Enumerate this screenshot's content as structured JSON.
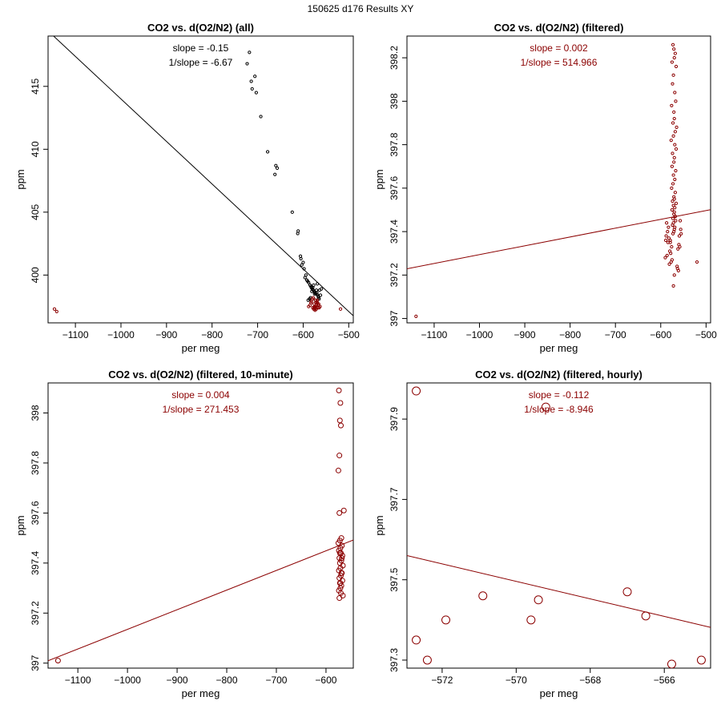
{
  "page_title": "150625   d176   Results XY",
  "colors": {
    "dark_red": "#8b0000",
    "black": "#000000"
  },
  "chart_data": [
    {
      "type": "scatter",
      "id": "all",
      "title": "CO2 vs. d(O2/N2) (all)",
      "xlabel": "per meg",
      "ylabel": "ppm",
      "xlim": [
        -1160,
        -490
      ],
      "ylim": [
        396.2,
        419.0
      ],
      "xticks": [
        -1100,
        -1000,
        -900,
        -800,
        -700,
        -600,
        -500
      ],
      "yticks": [
        400,
        405,
        410,
        415
      ],
      "annotations": [
        "slope = -0.15",
        "1/slope = -6.67"
      ],
      "annotation_color": "#000000",
      "fit_line": {
        "slope": -0.0338,
        "intercept": 380.2,
        "color": "#000000"
      },
      "point_radius": 1.6,
      "series": [
        {
          "name": "all",
          "color": "#000000",
          "x": [
            -718,
            -723,
            -714,
            -706,
            -712,
            -703,
            -693,
            -678,
            -660,
            -662,
            -657,
            -624,
            -611,
            -612,
            -605,
            -606,
            -600,
            -603,
            -598,
            -594,
            -592,
            -590,
            -588,
            -596,
            -585,
            -583,
            -582,
            -580,
            -579,
            -578,
            -576,
            -574,
            -572,
            -571,
            -570,
            -568,
            -567,
            -566,
            -565,
            -573,
            -575,
            -577,
            -569,
            -560,
            -581,
            -584,
            -586,
            -589,
            -562,
            -564
          ],
          "y": [
            417.7,
            416.8,
            415.4,
            415.8,
            414.8,
            414.5,
            412.6,
            409.8,
            408.7,
            408.0,
            408.5,
            405.0,
            403.5,
            403.3,
            401.3,
            401.5,
            401.0,
            400.8,
            400.5,
            400.0,
            399.6,
            399.5,
            399.4,
            399.8,
            399.2,
            399.1,
            399.0,
            398.9,
            399.0,
            398.8,
            398.7,
            398.6,
            398.5,
            398.8,
            398.6,
            398.4,
            398.3,
            398.2,
            398.1,
            398.0,
            398.5,
            399.2,
            399.3,
            398.9,
            398.7,
            398.2,
            398.1,
            398.0,
            398.4,
            398.8
          ]
        },
        {
          "name": "filtered",
          "color": "#8b0000",
          "x": [
            -1146,
            -1141,
            -518,
            -575,
            -571,
            -566,
            -579,
            -569,
            -582,
            -573,
            -577,
            -568,
            -585,
            -563,
            -580,
            -574,
            -570,
            -572,
            -567,
            -576,
            -588,
            -565,
            -578,
            -571,
            -573,
            -583,
            -569,
            -576,
            -572,
            -574
          ],
          "y": [
            397.3,
            397.1,
            397.3,
            397.5,
            397.6,
            397.7,
            397.4,
            397.8,
            397.9,
            398.0,
            397.3,
            397.4,
            397.6,
            397.5,
            398.1,
            397.2,
            397.9,
            397.8,
            397.6,
            397.7,
            397.5,
            397.4,
            398.2,
            397.3,
            397.5,
            397.8,
            398.0,
            397.4,
            397.6,
            397.3
          ]
        }
      ]
    },
    {
      "type": "scatter",
      "id": "filtered",
      "title": "CO2 vs. d(O2/N2) (filtered)",
      "xlabel": "per meg",
      "ylabel": "ppm",
      "xlim": [
        -1160,
        -490
      ],
      "ylim": [
        396.98,
        398.3
      ],
      "xticks": [
        -1100,
        -1000,
        -900,
        -800,
        -700,
        -600,
        -500
      ],
      "yticks": [
        397.0,
        397.2,
        397.4,
        397.6,
        397.8,
        398.0,
        398.2
      ],
      "annotations": [
        "slope = 0.002",
        "1/slope = 514.966"
      ],
      "annotation_color": "#8b0000",
      "fit_line": {
        "slope": 0.000406,
        "intercept": 397.7,
        "color": "#8b0000"
      },
      "point_radius": 1.6,
      "series": [
        {
          "name": "filtered",
          "color": "#8b0000",
          "x": [
            -1140,
            -520,
            -573,
            -571,
            -568,
            -570,
            -575,
            -566,
            -572,
            -574,
            -569,
            -567,
            -576,
            -571,
            -570,
            -573,
            -565,
            -568,
            -572,
            -577,
            -569,
            -566,
            -574,
            -570,
            -571,
            -575,
            -567,
            -572,
            -569,
            -573,
            -576,
            -568,
            -571,
            -570,
            -574,
            -566,
            -572,
            -569,
            -575,
            -570,
            -571,
            -568,
            -573,
            -567,
            -572,
            -574,
            -569,
            -570,
            -571,
            -573,
            -588,
            -582,
            -579,
            -584,
            -560,
            -558,
            -562,
            -580,
            -578,
            -586,
            -590,
            -575,
            -577,
            -581,
            -564,
            -563,
            -561,
            -585,
            -583,
            -587,
            -589,
            -559,
            -557,
            -556,
            -555,
            -579,
            -576,
            -572,
            -570,
            -568
          ],
          "y": [
            397.01,
            397.26,
            398.26,
            398.24,
            398.22,
            398.2,
            398.18,
            398.16,
            398.12,
            398.08,
            398.04,
            398.0,
            397.98,
            397.95,
            397.92,
            397.9,
            397.88,
            397.86,
            397.84,
            397.82,
            397.8,
            397.78,
            397.76,
            397.74,
            397.72,
            397.7,
            397.68,
            397.66,
            397.64,
            397.62,
            397.6,
            397.58,
            397.56,
            397.55,
            397.54,
            397.53,
            397.52,
            397.51,
            397.5,
            397.49,
            397.48,
            397.47,
            397.46,
            397.45,
            397.44,
            397.43,
            397.42,
            397.41,
            397.4,
            397.39,
            397.38,
            397.37,
            397.36,
            397.35,
            397.34,
            397.33,
            397.32,
            397.31,
            397.3,
            397.29,
            397.28,
            397.27,
            397.26,
            397.25,
            397.24,
            397.23,
            397.22,
            397.4,
            397.42,
            397.44,
            397.36,
            397.38,
            397.45,
            397.41,
            397.39,
            397.35,
            397.33,
            397.15,
            397.2,
            397.47
          ]
        }
      ]
    },
    {
      "type": "scatter",
      "id": "ten_minute",
      "title": "CO2 vs. d(O2/N2) (filtered, 10-minute)",
      "xlabel": "per meg",
      "ylabel": "ppm",
      "xlim": [
        -1160,
        -545
      ],
      "ylim": [
        396.98,
        398.12
      ],
      "xticks": [
        -1100,
        -1000,
        -900,
        -800,
        -700,
        -600
      ],
      "yticks": [
        397.0,
        397.2,
        397.4,
        397.6,
        397.8,
        398.0
      ],
      "annotations": [
        "slope = 0.004",
        "1/slope = 271.453"
      ],
      "annotation_color": "#8b0000",
      "fit_line": {
        "slope": 0.000785,
        "intercept": 397.92,
        "color": "#8b0000"
      },
      "point_radius": 3,
      "series": [
        {
          "name": "10-minute",
          "color": "#8b0000",
          "x": [
            -1140,
            -574,
            -572,
            -570,
            -573,
            -571,
            -575,
            -564,
            -573,
            -569,
            -572,
            -568,
            -571,
            -574,
            -570,
            -567,
            -573,
            -569,
            -572,
            -566,
            -571,
            -574,
            -568,
            -570,
            -573,
            -567,
            -572,
            -569,
            -571,
            -574,
            -570,
            -566,
            -573,
            -568,
            -572,
            -575,
            -569,
            -571
          ],
          "y": [
            397.01,
            398.09,
            397.97,
            397.95,
            397.83,
            398.04,
            397.77,
            397.61,
            397.6,
            397.5,
            397.49,
            397.47,
            397.46,
            397.45,
            397.44,
            397.43,
            397.42,
            397.41,
            397.4,
            397.39,
            397.38,
            397.37,
            397.36,
            397.35,
            397.34,
            397.33,
            397.32,
            397.31,
            397.3,
            397.29,
            397.28,
            397.27,
            397.26,
            397.42,
            397.44,
            397.48,
            397.36,
            397.32
          ]
        }
      ]
    },
    {
      "type": "scatter",
      "id": "hourly",
      "title": "CO2 vs. d(O2/N2) (filtered, hourly)",
      "xlabel": "per meg",
      "ylabel": "ppm",
      "xlim": [
        -572.95,
        -564.75
      ],
      "ylim": [
        397.28,
        397.99
      ],
      "xticks": [
        -572,
        -570,
        -568,
        -566
      ],
      "yticks": [
        397.3,
        397.5,
        397.7,
        397.9
      ],
      "annotations": [
        "slope = -0.112",
        "1/slope = -8.946"
      ],
      "annotation_color": "#8b0000",
      "fit_line": {
        "slope": -0.0218,
        "intercept": 385.07,
        "color": "#8b0000"
      },
      "point_radius": 5,
      "series": [
        {
          "name": "hourly",
          "color": "#8b0000",
          "x": [
            -572.7,
            -572.7,
            -572.4,
            -571.9,
            -570.9,
            -569.6,
            -569.4,
            -569.2,
            -567.0,
            -566.5,
            -565.8,
            -565.0
          ],
          "y": [
            397.97,
            397.35,
            397.3,
            397.4,
            397.46,
            397.4,
            397.45,
            397.93,
            397.47,
            397.41,
            397.29,
            397.3
          ]
        }
      ]
    }
  ]
}
